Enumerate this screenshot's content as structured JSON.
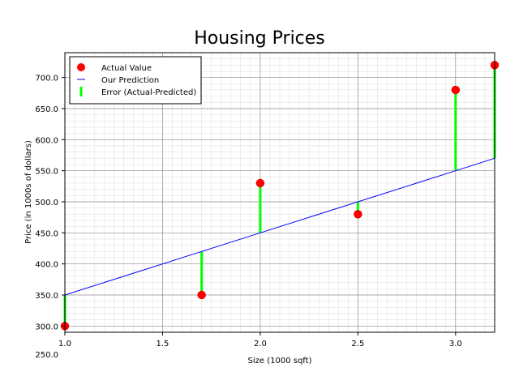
{
  "chart_data": {
    "type": "scatter",
    "title": "Housing Prices",
    "xlabel": "Size (1000 sqft)",
    "ylabel": "Price (in 1000s of dollars)",
    "xlim": [
      1.0,
      3.2
    ],
    "ylim": [
      290,
      740
    ],
    "x_ticks": [
      1.0,
      1.5,
      2.0,
      2.5,
      3.0
    ],
    "x_tick_labels": [
      "1.0",
      "1.5",
      "2.0",
      "2.5",
      "3.0"
    ],
    "y_ticks": [
      250,
      300,
      350,
      400,
      450,
      500,
      550,
      600,
      650,
      700
    ],
    "y_tick_labels": [
      "250.0",
      "300.0",
      "350.0",
      "400.0",
      "450.0",
      "500.0",
      "550.0",
      "600.0",
      "650.0",
      "700.0"
    ],
    "grid": true,
    "legend_position": "top-left",
    "series": [
      {
        "name": "Actual Value",
        "kind": "scatter",
        "color": "#ff0000",
        "x": [
          1.0,
          1.7,
          2.0,
          2.5,
          3.0,
          3.2
        ],
        "y": [
          300,
          350,
          530,
          480,
          680,
          720
        ]
      },
      {
        "name": "Our Prediction",
        "kind": "line",
        "color": "#0000ff",
        "x": [
          1.0,
          1.7,
          2.0,
          2.5,
          3.0,
          3.2
        ],
        "y": [
          350,
          420,
          450,
          500,
          550,
          570
        ]
      },
      {
        "name": "Error (Actual-Predicted)",
        "kind": "error-segments",
        "color": "#00ff00"
      }
    ]
  }
}
